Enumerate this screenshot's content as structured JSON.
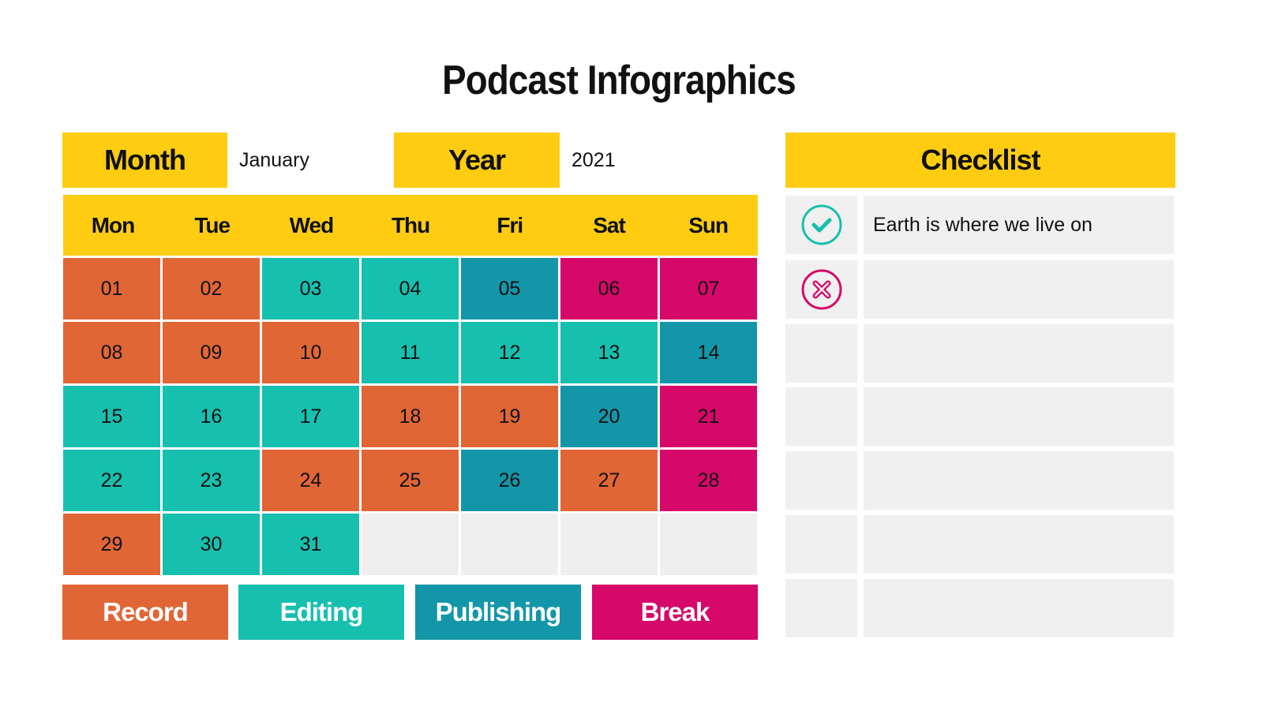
{
  "title": "Podcast Infographics",
  "month": {
    "label": "Month",
    "value": "January"
  },
  "year": {
    "label": "Year",
    "value": "2021"
  },
  "days": [
    "Mon",
    "Tue",
    "Wed",
    "Thu",
    "Fri",
    "Sat",
    "Sun"
  ],
  "colors": {
    "Record": "#E06636",
    "Editing": "#17BFAE",
    "Publishing": "#1396A8",
    "Break": "#D6086A",
    "header": "#FFCC12",
    "empty": "#EFEFEF"
  },
  "calendar": [
    [
      "01",
      "Record"
    ],
    [
      "02",
      "Record"
    ],
    [
      "03",
      "Editing"
    ],
    [
      "04",
      "Editing"
    ],
    [
      "05",
      "Publishing"
    ],
    [
      "06",
      "Break"
    ],
    [
      "07",
      "Break"
    ],
    [
      "08",
      "Record"
    ],
    [
      "09",
      "Record"
    ],
    [
      "10",
      "Record"
    ],
    [
      "11",
      "Editing"
    ],
    [
      "12",
      "Editing"
    ],
    [
      "13",
      "Editing"
    ],
    [
      "14",
      "Publishing"
    ],
    [
      "15",
      "Editing"
    ],
    [
      "16",
      "Editing"
    ],
    [
      "17",
      "Editing"
    ],
    [
      "18",
      "Record"
    ],
    [
      "19",
      "Record"
    ],
    [
      "20",
      "Publishing"
    ],
    [
      "21",
      "Break"
    ],
    [
      "22",
      "Editing"
    ],
    [
      "23",
      "Editing"
    ],
    [
      "24",
      "Record"
    ],
    [
      "25",
      "Record"
    ],
    [
      "26",
      "Publishing"
    ],
    [
      "27",
      "Record"
    ],
    [
      "28",
      "Break"
    ],
    [
      "29",
      "Record"
    ],
    [
      "30",
      "Editing"
    ],
    [
      "31",
      "Editing"
    ]
  ],
  "legend": [
    "Record",
    "Editing",
    "Publishing",
    "Break"
  ],
  "checklist": {
    "title": "Checklist",
    "items": [
      {
        "icon": "check-circle-icon",
        "text": "Earth is where we live on"
      },
      {
        "icon": "x-circle-icon",
        "text": ""
      },
      {
        "icon": "",
        "text": ""
      },
      {
        "icon": "",
        "text": ""
      },
      {
        "icon": "",
        "text": ""
      },
      {
        "icon": "",
        "text": ""
      },
      {
        "icon": "",
        "text": ""
      }
    ]
  }
}
